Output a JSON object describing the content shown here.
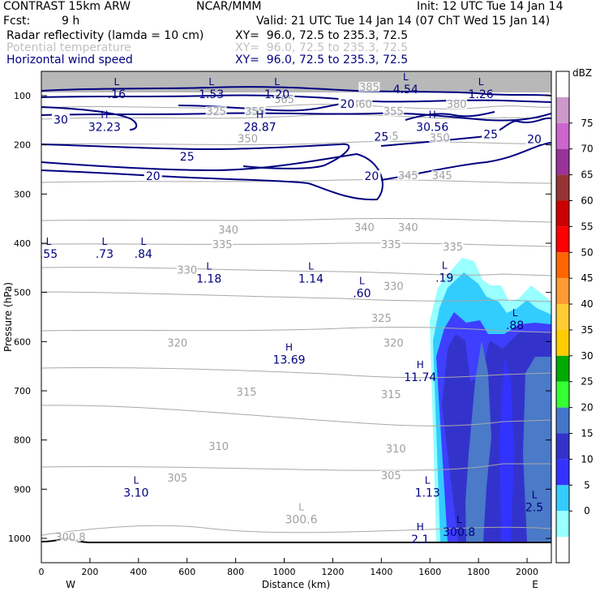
{
  "header": {
    "model": "CONTRAST 15km ARW",
    "org": "NCAR/MMM",
    "init": "Init: 12 UTC Tue 14 Jan 14",
    "fcst_label": "Fcst:",
    "fcst_value": "9 h",
    "valid": "Valid: 21 UTC Tue 14 Jan 14 (07 ChT Wed 15 Jan 14)",
    "fields": [
      {
        "name": "Radar reflectivity (lamda = 10 cm)",
        "xy": "XY=  96.0, 72.5 to 235.3, 72.5",
        "color": "#000000"
      },
      {
        "name": "Potential temperature",
        "xy": "XY=  96.0, 72.5 to 235.3, 72.5",
        "color": "#c0c0c0"
      },
      {
        "name": "Horizontal wind speed",
        "xy": "XY=  96.0, 72.5 to 235.3, 72.5",
        "color": "#000080"
      }
    ]
  },
  "chart_data": {
    "type": "contour cross-section",
    "xlabel": "Distance (km)",
    "ylabel": "Pressure (hPa)",
    "xlim": [
      0,
      2100
    ],
    "ylim": [
      1050,
      50
    ],
    "x_ticks": [
      0,
      200,
      400,
      600,
      800,
      1000,
      1200,
      1400,
      1600,
      1800,
      2000
    ],
    "y_ticks": [
      100,
      200,
      300,
      400,
      500,
      600,
      700,
      800,
      900,
      1000
    ],
    "end_labels": {
      "left": "W",
      "right": "E"
    },
    "colorbar": {
      "unit": "dBZ",
      "levels": [
        0,
        5,
        10,
        15,
        20,
        25,
        30,
        35,
        40,
        45,
        50,
        55,
        60,
        65,
        70,
        75
      ],
      "colors": [
        "#ffffff",
        "#99ffff",
        "#33ccff",
        "#3333ff",
        "#3333cc",
        "#4477cc",
        "#33ff33",
        "#00aa00",
        "#ffcc00",
        "#ffcc33",
        "#ff9933",
        "#ff6600",
        "#ff0000",
        "#cc0000",
        "#993333",
        "#993399",
        "#cc66cc",
        "#cc99cc"
      ]
    },
    "theta_labels": [
      {
        "value": "385",
        "x": 1350,
        "p": 85
      },
      {
        "value": "365",
        "x": 1000,
        "p": 110
      },
      {
        "value": "360",
        "x": 1320,
        "p": 120
      },
      {
        "value": "355",
        "x": 1450,
        "p": 135
      },
      {
        "value": "380",
        "x": 1710,
        "p": 120
      },
      {
        "value": "325",
        "x": 720,
        "p": 135
      },
      {
        "value": "355",
        "x": 880,
        "p": 135
      },
      {
        "value": "350",
        "x": 850,
        "p": 190
      },
      {
        "value": "350",
        "x": 1640,
        "p": 188
      },
      {
        "value": "355",
        "x": 1430,
        "p": 185
      },
      {
        "value": "345",
        "x": 1510,
        "p": 265
      },
      {
        "value": "345",
        "x": 1650,
        "p": 265
      },
      {
        "value": "340",
        "x": 770,
        "p": 375
      },
      {
        "value": "340",
        "x": 1330,
        "p": 370
      },
      {
        "value": "340",
        "x": 1510,
        "p": 370
      },
      {
        "value": "335",
        "x": 745,
        "p": 405
      },
      {
        "value": "335",
        "x": 1440,
        "p": 405
      },
      {
        "value": "335",
        "x": 1695,
        "p": 410
      },
      {
        "value": "330",
        "x": 600,
        "p": 457
      },
      {
        "value": "330",
        "x": 1450,
        "p": 490
      },
      {
        "value": "325",
        "x": 1400,
        "p": 555
      },
      {
        "value": "320",
        "x": 560,
        "p": 605
      },
      {
        "value": "320",
        "x": 1450,
        "p": 605
      },
      {
        "value": "315",
        "x": 845,
        "p": 705
      },
      {
        "value": "315",
        "x": 1440,
        "p": 710
      },
      {
        "value": "310",
        "x": 730,
        "p": 815
      },
      {
        "value": "310",
        "x": 1460,
        "p": 820
      },
      {
        "value": "305",
        "x": 560,
        "p": 880
      },
      {
        "value": "305",
        "x": 1440,
        "p": 875
      },
      {
        "value": "300.8",
        "x": 120,
        "p": 1000
      }
    ],
    "wind_labels": [
      {
        "value": "30",
        "x": 80,
        "p": 150
      },
      {
        "value": "25",
        "x": 600,
        "p": 225
      },
      {
        "value": "20",
        "x": 460,
        "p": 265
      },
      {
        "value": "20",
        "x": 1260,
        "p": 118
      },
      {
        "value": "25",
        "x": 1400,
        "p": 185
      },
      {
        "value": "20",
        "x": 1360,
        "p": 265
      },
      {
        "value": "25",
        "x": 1850,
        "p": 180
      },
      {
        "value": "20",
        "x": 2030,
        "p": 190
      }
    ],
    "extrema": [
      {
        "type": "L",
        "value": ".16",
        "x": 310,
        "p": 95
      },
      {
        "type": "L",
        "value": "1.53",
        "x": 700,
        "p": 95
      },
      {
        "type": "L",
        "value": "1.20",
        "x": 970,
        "p": 95
      },
      {
        "type": "L",
        "value": "4.54",
        "x": 1500,
        "p": 85
      },
      {
        "type": "L",
        "value": "1.26",
        "x": 1810,
        "p": 95
      },
      {
        "type": "H",
        "value": "32.23",
        "x": 260,
        "p": 162
      },
      {
        "type": "H",
        "value": "28.87",
        "x": 900,
        "p": 162
      },
      {
        "type": "H",
        "value": "30.56",
        "x": 1610,
        "p": 162
      },
      {
        "type": "L",
        "value": ".55",
        "x": 30,
        "p": 420
      },
      {
        "type": "L",
        "value": ".73",
        "x": 260,
        "p": 420
      },
      {
        "type": "L",
        "value": ".84",
        "x": 420,
        "p": 420
      },
      {
        "type": "L",
        "value": "1.18",
        "x": 690,
        "p": 470
      },
      {
        "type": "L",
        "value": "1.14",
        "x": 1110,
        "p": 470
      },
      {
        "type": "L",
        "value": ".60",
        "x": 1320,
        "p": 500
      },
      {
        "type": "L",
        "value": ".19",
        "x": 1660,
        "p": 468
      },
      {
        "type": "L",
        "value": ".88",
        "x": 1950,
        "p": 565
      },
      {
        "type": "H",
        "value": "13.69",
        "x": 1020,
        "p": 635
      },
      {
        "type": "H",
        "value": "11.74",
        "x": 1560,
        "p": 670
      },
      {
        "type": "L",
        "value": "3.10",
        "x": 390,
        "p": 905
      },
      {
        "type": "L",
        "value": "1.13",
        "x": 1590,
        "p": 905
      },
      {
        "type": "L",
        "value": "2.5",
        "x": 2030,
        "p": 935
      },
      {
        "type": "L",
        "value": "300.6",
        "x": 1070,
        "p": 960
      },
      {
        "type": "L",
        "value": "300.8",
        "x": 1720,
        "p": 985
      },
      {
        "type": "H",
        "value": "2.1",
        "x": 1560,
        "p": 1000
      }
    ]
  }
}
